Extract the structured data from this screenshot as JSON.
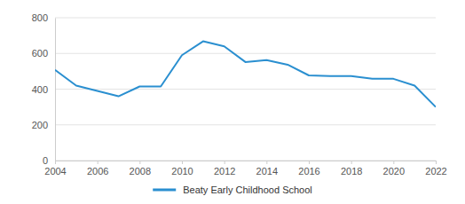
{
  "chart_data": {
    "type": "line",
    "x": [
      2004,
      2005,
      2006,
      2007,
      2008,
      2009,
      2010,
      2011,
      2012,
      2013,
      2014,
      2015,
      2016,
      2017,
      2018,
      2019,
      2020,
      2021,
      2022
    ],
    "series": [
      {
        "name": "Beaty Early Childhood School",
        "color": "#2a8fd0",
        "values": [
          508,
          420,
          390,
          360,
          415,
          415,
          590,
          668,
          640,
          552,
          563,
          537,
          477,
          473,
          473,
          458,
          458,
          420,
          300
        ]
      }
    ],
    "xlim": [
      2004,
      2022
    ],
    "xticks": [
      2004,
      2006,
      2008,
      2010,
      2012,
      2014,
      2016,
      2018,
      2020,
      2022
    ],
    "ylim": [
      0,
      800
    ],
    "yticks": [
      0,
      200,
      400,
      600,
      800
    ],
    "grid": true,
    "legend": "bottom"
  }
}
